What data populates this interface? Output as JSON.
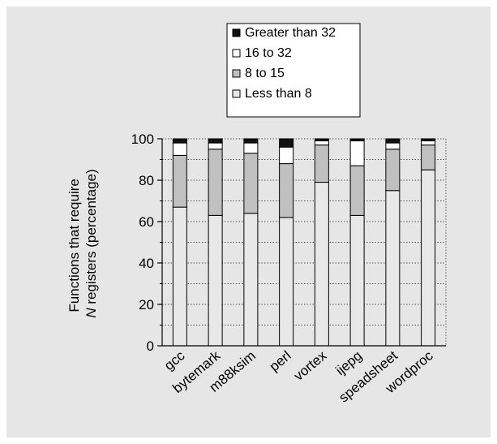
{
  "chart_data": {
    "type": "bar",
    "stacked": true,
    "categories": [
      "gcc",
      "bytemark",
      "m88ksim",
      "perl",
      "vortex",
      "ijepg",
      "speadsheet",
      "wordproc"
    ],
    "series": [
      {
        "name": "Less than 8",
        "color": "#e8e8e8",
        "values": [
          67,
          63,
          64,
          62,
          79,
          63,
          75,
          85
        ]
      },
      {
        "name": "8 to 15",
        "color": "#c0c0c0",
        "values": [
          25,
          32,
          29,
          26,
          18,
          24,
          20,
          12
        ]
      },
      {
        "name": "16 to 32",
        "color": "#ffffff",
        "values": [
          6,
          3,
          5,
          8,
          2,
          12,
          3,
          2
        ]
      },
      {
        "name": "Greater than 32",
        "color": "#111111",
        "values": [
          2,
          2,
          2,
          4,
          1,
          1,
          2,
          1
        ]
      }
    ],
    "ylabel_line1": "Functions that require",
    "ylabel_line2_italic": "N",
    "ylabel_line2_rest": " registers (percentage)",
    "ylim": [
      0,
      100
    ],
    "yticks": [
      "0",
      "20",
      "40",
      "60",
      "80",
      "100"
    ],
    "grid": true,
    "legend_position": "top-right"
  }
}
